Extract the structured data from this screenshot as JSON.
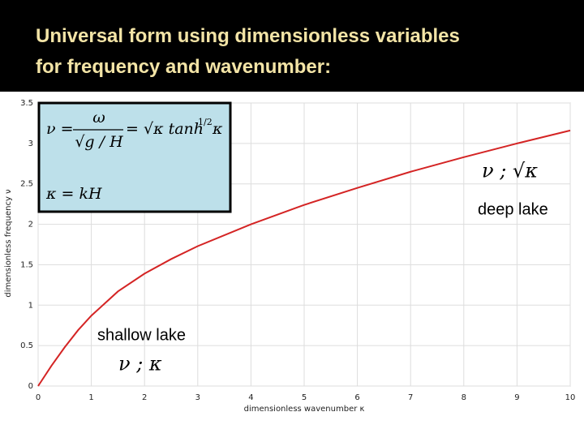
{
  "header": {
    "title_lines": [
      "Universal form using dimensionless variables",
      "for frequency and wavenumber:"
    ]
  },
  "chart_data": {
    "type": "line",
    "x_label": "dimensionless wavenumber κ",
    "y_label": "dimensionless frequency ν",
    "x": [
      0,
      0.25,
      0.5,
      0.75,
      1,
      1.5,
      2,
      2.5,
      3,
      4,
      5,
      6,
      7,
      8,
      9,
      10
    ],
    "values": [
      0,
      0.25,
      0.48,
      0.69,
      0.87,
      1.17,
      1.39,
      1.57,
      1.73,
      2.0,
      2.24,
      2.45,
      2.65,
      2.83,
      3.0,
      3.16
    ],
    "color": "#d42424",
    "xlim": [
      0,
      10
    ],
    "ylim": [
      0,
      3.5
    ],
    "xticks": [
      0,
      1,
      2,
      3,
      4,
      5,
      6,
      7,
      8,
      9,
      10
    ],
    "yticks": [
      0,
      0.5,
      1,
      1.5,
      2,
      2.5,
      3,
      3.5
    ],
    "grid": true,
    "annotations": {
      "deep": "deep lake",
      "deep_law": "ν ; √κ",
      "shallow": "shallow lake",
      "shallow_law": "ν ; κ"
    },
    "formula": {
      "lhs": "ν =",
      "numerator": "ω",
      "denominator": "√g / H",
      "rhs": "= √κ tanh",
      "power": "1/2",
      "end": "κ",
      "second": "κ = kH"
    }
  }
}
